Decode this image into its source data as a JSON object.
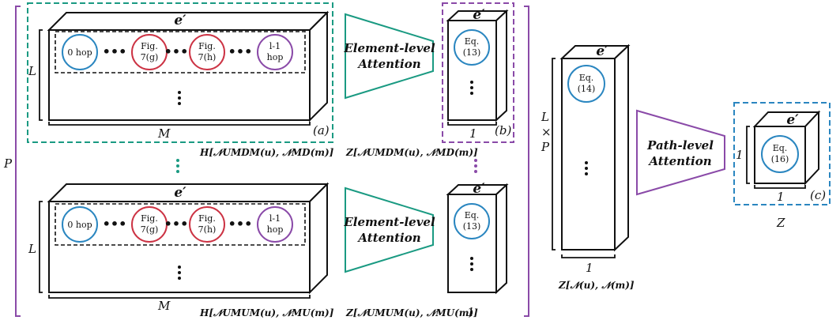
{
  "colors": {
    "teal": "#1a9a82",
    "purple": "#8a4aa8",
    "blue": "#2a86c0",
    "red": "#cc3344",
    "black": "#111111"
  },
  "labels": {
    "e_prime": "e′",
    "L": "L",
    "M": "M",
    "P": "P",
    "one": "1",
    "Z": "Z",
    "panel_a": "(a)",
    "panel_b": "(b)",
    "panel_c": "(c)",
    "L_x_P": [
      "L",
      "×",
      "P"
    ]
  },
  "nodes": {
    "hop0": "0 hop",
    "fig7g": [
      "Fig.",
      "7(g)"
    ],
    "fig7h": [
      "Fig.",
      "7(h)"
    ],
    "hopl1": [
      "l-1",
      "hop"
    ],
    "eq13": [
      "Eq.",
      "(13)"
    ],
    "eq14": [
      "Eq.",
      "(14)"
    ],
    "eq16": [
      "Eq.",
      "(16)"
    ],
    "ellipsis": "•••"
  },
  "attention": {
    "element": [
      "Element-level",
      "Attention"
    ],
    "path": [
      "Path-level",
      "Attention"
    ]
  },
  "formulas": {
    "h_top": "H[𝒩UMDM(u), 𝒩MD(m)]",
    "z_top": "Z[𝒩UMDM(u), 𝒩MD(m)]",
    "h_bot": "H[𝒩UMUM(u), 𝒩MU(m)]",
    "z_bot": "Z[𝒩UMUM(u), 𝒩MU(m)]",
    "z_mid": "Z[𝒩(u), 𝒩(m)]"
  }
}
